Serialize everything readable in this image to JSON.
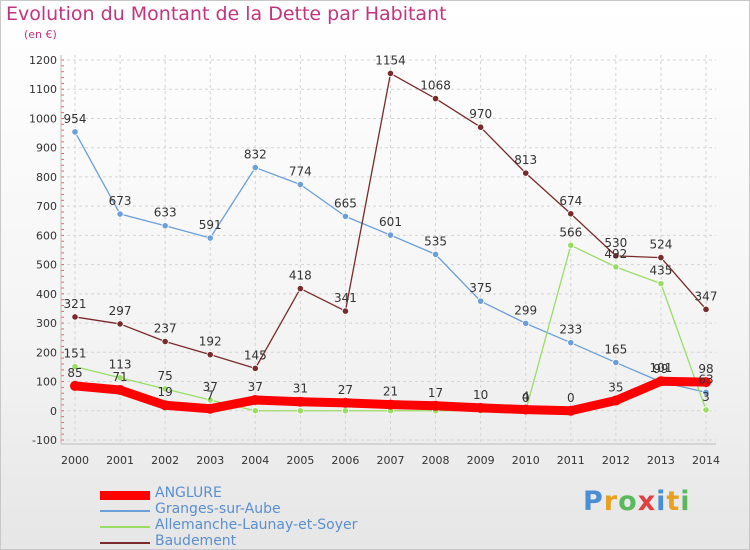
{
  "chart_data": {
    "type": "line",
    "title": "Evolution du Montant de la Dette par Habitant",
    "subtitle": "(en €)",
    "xlabel": "",
    "ylabel": "",
    "ylim": [
      -100,
      1200
    ],
    "yticks": [
      -100,
      0,
      100,
      200,
      300,
      400,
      500,
      600,
      700,
      800,
      900,
      1000,
      1100,
      1200
    ],
    "x": [
      "2000",
      "2001",
      "2002",
      "2003",
      "2004",
      "2005",
      "2006",
      "2007",
      "2008",
      "2009",
      "2010",
      "2011",
      "2012",
      "2013",
      "2014"
    ],
    "grid": true,
    "legend_position": "bottom-left",
    "series": [
      {
        "name": "ANGLURE",
        "color": "#ff0000",
        "values": [
          85,
          71,
          19,
          7,
          37,
          31,
          27,
          21,
          17,
          10,
          4,
          0,
          35,
          101,
          98
        ]
      },
      {
        "name": "Granges-sur-Aube",
        "color": "#6a9fd8",
        "values": [
          954,
          673,
          633,
          591,
          832,
          774,
          665,
          601,
          535,
          375,
          299,
          233,
          165,
          99,
          63
        ]
      },
      {
        "name": "Allemanche-Launay-et-Soyer",
        "color": "#99dd66",
        "values": [
          151,
          113,
          75,
          37,
          0,
          0,
          0,
          0,
          0,
          0,
          0,
          566,
          492,
          435,
          3
        ]
      },
      {
        "name": "Baudement",
        "color": "#7a2a2a",
        "values": [
          321,
          297,
          237,
          192,
          145,
          418,
          341,
          1154,
          1068,
          970,
          813,
          674,
          530,
          524,
          347
        ]
      }
    ],
    "data_labels": {
      "ANGLURE": [
        "85",
        "71",
        "19",
        "7",
        "37",
        "31",
        "27",
        "21",
        "17",
        "10",
        "4",
        "0",
        "35",
        "101",
        "98"
      ],
      "Granges-sur-Aube": [
        "954",
        "673",
        "633",
        "591",
        "832",
        "774",
        "665",
        "601",
        "535",
        "375",
        "299",
        "233",
        "165",
        "99",
        "63"
      ],
      "Allemanche-Launay-et-Soyer": [
        "151",
        "113",
        "75",
        "37",
        "",
        "",
        "",
        "",
        "",
        "",
        "0",
        "566",
        "492",
        "435",
        "3"
      ],
      "Baudement": [
        "321",
        "297",
        "237",
        "192",
        "145",
        "418",
        "341",
        "1154",
        "1068",
        "970",
        "813",
        "674",
        "530",
        "524",
        "347"
      ]
    }
  },
  "legend": [
    {
      "label": "ANGLURE",
      "color": "#ff0000"
    },
    {
      "label": "Granges-sur-Aube",
      "color": "#6a9fd8"
    },
    {
      "label": "Allemanche-Launay-et-Soyer",
      "color": "#99dd66"
    },
    {
      "label": "Baudement",
      "color": "#7a2a2a"
    }
  ],
  "brand": {
    "letters": [
      "P",
      "r",
      "o",
      "x",
      "i",
      "t",
      "i"
    ],
    "colors": [
      "#4a8fd4",
      "#e8a020",
      "#5cb85c",
      "#e04040",
      "#4a8fd4",
      "#e8a020",
      "#5cb85c"
    ]
  }
}
